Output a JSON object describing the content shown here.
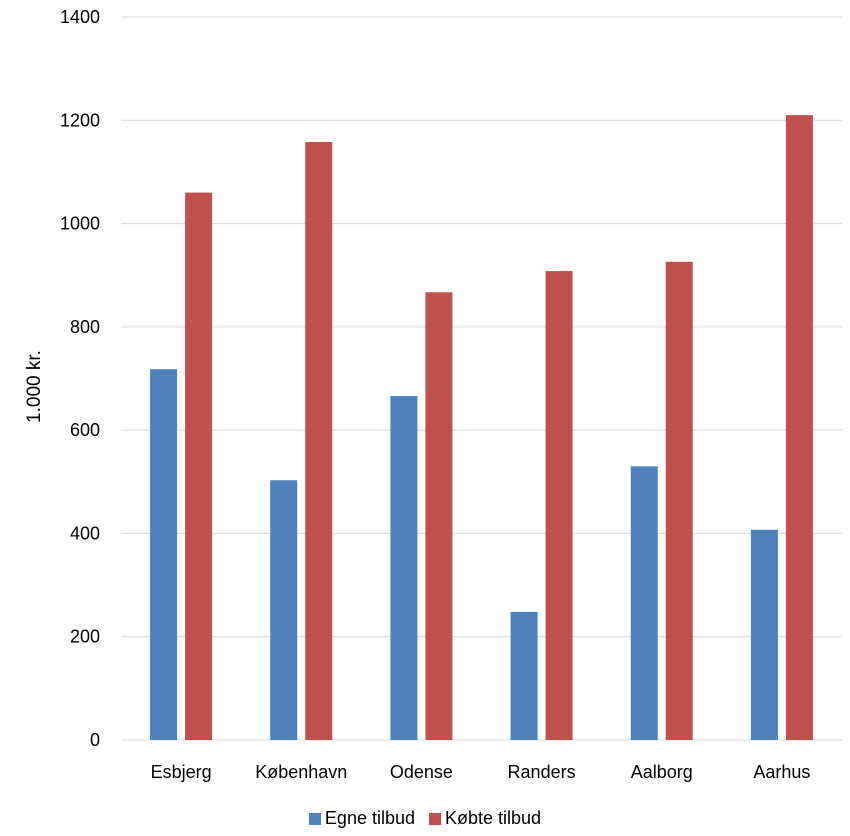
{
  "chart_data": {
    "type": "bar",
    "title": "",
    "xlabel": "",
    "ylabel": "1.000 kr.",
    "ylim": [
      0,
      1400
    ],
    "yticks": [
      "0",
      "200",
      "400",
      "600",
      "800",
      "1000",
      "1200",
      "1400"
    ],
    "grid": true,
    "legend_position": "bottom",
    "categories": [
      "Esbjerg",
      "København",
      "Odense",
      "Randers",
      "Aalborg",
      "Aarhus"
    ],
    "series": [
      {
        "name": "Egne tilbud",
        "color": "#4F81BD",
        "values": [
          718,
          503,
          666,
          248,
          530,
          407
        ]
      },
      {
        "name": "Købte tilbud",
        "color": "#C0504D",
        "values": [
          1060,
          1158,
          867,
          908,
          926,
          1210
        ]
      }
    ]
  }
}
